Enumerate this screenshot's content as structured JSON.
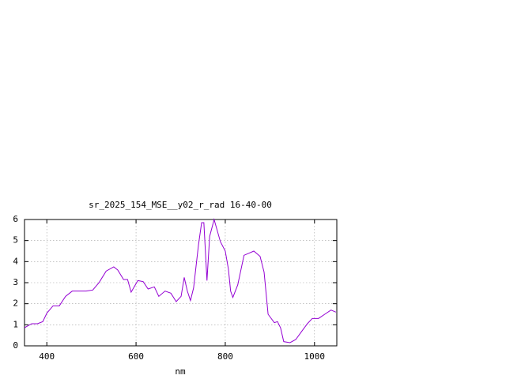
{
  "chart_data": {
    "type": "line",
    "title": "sr_2025_154_MSE__y02_r_rad 16-40-00",
    "x_label": "nm",
    "x": [
      350,
      366,
      379,
      391,
      400,
      414,
      428,
      442,
      457,
      471,
      488,
      503,
      517,
      533,
      550,
      559,
      572,
      581,
      589,
      604,
      616,
      627,
      641,
      651,
      665,
      678,
      690,
      701,
      708,
      715,
      722,
      729,
      740,
      747,
      752,
      759,
      765,
      775,
      789,
      800,
      807,
      812,
      817,
      828,
      842,
      853,
      864,
      878,
      887,
      896,
      910,
      917,
      924,
      931,
      945,
      958,
      970,
      984,
      995,
      1009,
      1023,
      1037,
      1048
    ],
    "values": [
      0.86,
      1.05,
      1.05,
      1.15,
      1.55,
      1.9,
      1.9,
      2.35,
      2.6,
      2.6,
      2.6,
      2.65,
      3.0,
      3.55,
      3.75,
      3.6,
      3.15,
      3.15,
      2.55,
      3.1,
      3.05,
      2.7,
      2.8,
      2.35,
      2.6,
      2.5,
      2.1,
      2.35,
      3.25,
      2.6,
      2.15,
      2.75,
      4.8,
      5.85,
      5.85,
      3.1,
      5.2,
      6.0,
      4.95,
      4.5,
      3.65,
      2.6,
      2.3,
      2.9,
      4.3,
      4.4,
      4.5,
      4.25,
      3.5,
      1.5,
      1.1,
      1.15,
      0.85,
      0.2,
      0.15,
      0.3,
      0.65,
      1.05,
      1.3,
      1.3,
      1.5,
      1.7,
      1.6
    ],
    "color": "#9400d3",
    "xlim": [
      350,
      1050
    ],
    "xticks": [
      400,
      600,
      800,
      1000
    ],
    "ylim": [
      0,
      6
    ],
    "yticks": [
      0,
      1,
      2,
      3,
      4,
      5,
      6
    ],
    "grid": true
  }
}
